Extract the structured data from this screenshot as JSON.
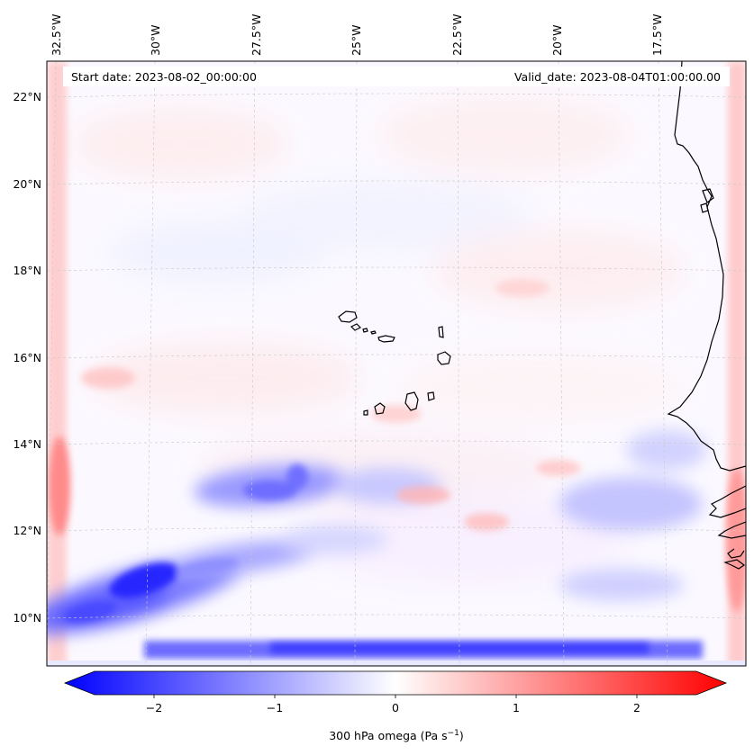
{
  "header": {
    "start_date": "Start date: 2023-08-02_00:00:00",
    "valid_date": "Valid_date: 2023-08-04T01:00:00.00"
  },
  "map": {
    "lat_labels": [
      "22°N",
      "20°N",
      "18°N",
      "16°N",
      "14°N",
      "12°N",
      "10°N"
    ],
    "lon_labels": [
      "32.5°W",
      "30°W",
      "27.5°W",
      "25°W",
      "22.5°W",
      "20°W",
      "17.5°W"
    ]
  },
  "colorbar": {
    "min": -2.5,
    "max": 2.5,
    "tick_labels": [
      "−2",
      "−1",
      "0",
      "1",
      "2"
    ],
    "label": "300 hPa omega (Pa s",
    "label_unit_superscript": "−1",
    "label_close": ")",
    "low_color": "#0000ff",
    "mid_color": "#ffffff",
    "high_color": "#ff0000"
  }
}
